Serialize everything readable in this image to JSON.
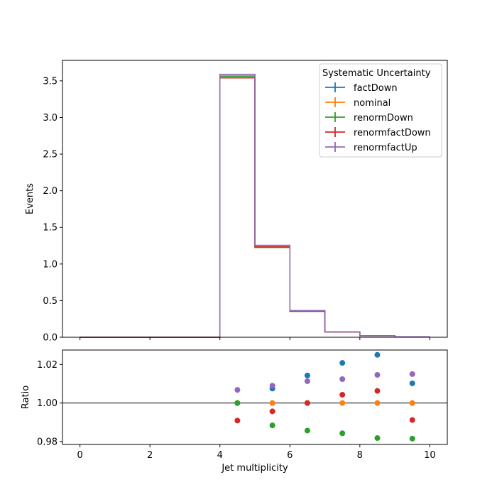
{
  "chart_data": [
    {
      "type": "step",
      "panel": "main",
      "ylabel": "Events",
      "xlim": [
        -0.5,
        10.5
      ],
      "ylim": [
        0,
        3.78
      ],
      "yticks": [
        0.0,
        0.5,
        1.0,
        1.5,
        2.0,
        2.5,
        3.0,
        3.5
      ],
      "ytick_labels": [
        "0.0",
        "0.5",
        "1.0",
        "1.5",
        "2.0",
        "2.5",
        "3.0",
        "3.5"
      ],
      "bin_edges": [
        0,
        1,
        2,
        3,
        4,
        5,
        6,
        7,
        8,
        9,
        10
      ],
      "legend": {
        "title": "Systematic Uncertainty",
        "placement": "upper right"
      },
      "series": [
        {
          "name": "factDown",
          "color": "#1f77b4",
          "values": [
            0,
            0,
            0,
            0,
            3.57,
            1.24,
            0.36,
            0.073,
            0.021,
            0.007
          ]
        },
        {
          "name": "nominal",
          "color": "#ff7f0e",
          "values": [
            0,
            0,
            0,
            0,
            3.57,
            1.24,
            0.36,
            0.072,
            0.02,
            0.007
          ]
        },
        {
          "name": "renormDown",
          "color": "#2ca02c",
          "values": [
            0,
            0,
            0,
            0,
            3.56,
            1.225,
            0.353,
            0.071,
            0.02,
            0.007
          ]
        },
        {
          "name": "renormfactDown",
          "color": "#d62728",
          "values": [
            0,
            0,
            0,
            0,
            3.54,
            1.235,
            0.355,
            0.072,
            0.02,
            0.007
          ]
        },
        {
          "name": "renormfactUp",
          "color": "#9467bd",
          "values": [
            0,
            0,
            0,
            0,
            3.59,
            1.255,
            0.365,
            0.073,
            0.021,
            0.007
          ]
        }
      ]
    },
    {
      "type": "scatter",
      "panel": "ratio",
      "xlabel": "Jet multiplicity",
      "ylabel": "Ratio",
      "xlim": [
        -0.5,
        10.5
      ],
      "ylim": [
        0.9785,
        1.0275
      ],
      "xticks": [
        0,
        2,
        4,
        6,
        8,
        10
      ],
      "xtick_labels": [
        "0",
        "2",
        "4",
        "6",
        "8",
        "10"
      ],
      "yticks": [
        0.98,
        1.0,
        1.02
      ],
      "ytick_labels": [
        "0.98",
        "1.00",
        "1.02"
      ],
      "reference_line": 1.0,
      "x": [
        4.5,
        5.5,
        6.5,
        7.5,
        8.5,
        9.5
      ],
      "series": [
        {
          "name": "factDown",
          "color": "#1f77b4",
          "values": [
            1.0,
            1.0075,
            1.0143,
            1.0208,
            1.025,
            1.0102
          ]
        },
        {
          "name": "nominal",
          "color": "#ff7f0e",
          "values": [
            1.0,
            1.0,
            1.0,
            1.0,
            1.0,
            1.0
          ]
        },
        {
          "name": "renormDown",
          "color": "#2ca02c",
          "values": [
            1.0,
            0.9884,
            0.9857,
            0.9843,
            0.9818,
            0.9815
          ]
        },
        {
          "name": "renormfactDown",
          "color": "#d62728",
          "values": [
            0.9909,
            0.9957,
            1.0,
            1.0043,
            1.0063,
            0.9912
          ]
        },
        {
          "name": "renormfactUp",
          "color": "#9467bd",
          "values": [
            1.0068,
            1.009,
            1.0113,
            1.0124,
            1.0146,
            1.015
          ]
        }
      ]
    }
  ]
}
